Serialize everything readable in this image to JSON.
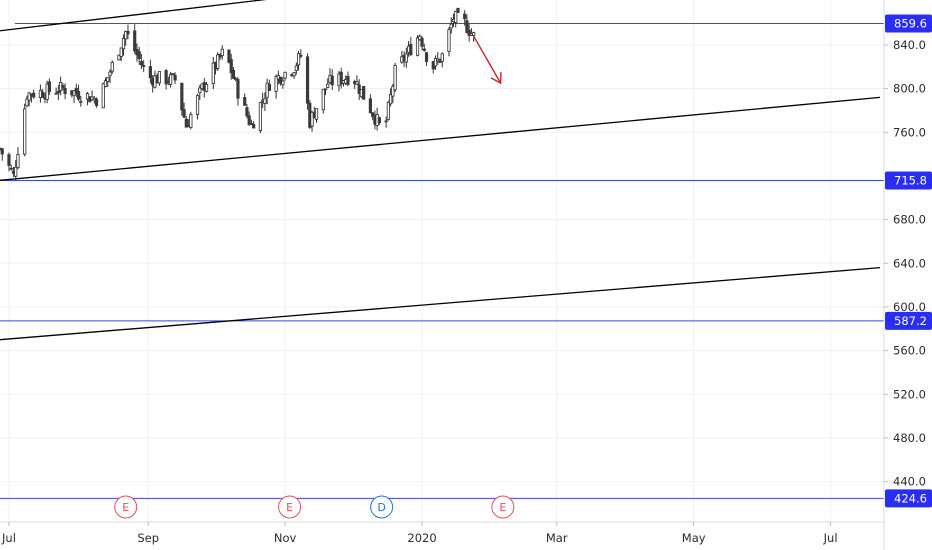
{
  "chart_data": {
    "type": "candlestick",
    "title": "",
    "xlabel": "",
    "ylabel": "",
    "x_ticks": [
      "Jul",
      "Sep",
      "Nov",
      "2020",
      "Mar",
      "May",
      "Jul"
    ],
    "y_ticks": [
      "840.0",
      "800.0",
      "760.0",
      "680.0",
      "640.0",
      "600.0",
      "560.0",
      "520.0",
      "480.0",
      "440.0"
    ],
    "ylim": [
      414,
      872
    ],
    "xlim": [
      "2019-06-27",
      "2020-07-23"
    ],
    "grid": true,
    "candles_summary": {
      "start_date": "2019-06-27",
      "end_date": "2020-01-24",
      "close_path": [
        [
          "2019-06-27",
          745
        ],
        [
          "2019-07-03",
          720
        ],
        [
          "2019-07-09",
          795
        ],
        [
          "2019-07-25",
          800
        ],
        [
          "2019-08-10",
          790
        ],
        [
          "2019-08-22",
          852
        ],
        [
          "2019-09-01",
          810
        ],
        [
          "2019-09-13",
          808
        ],
        [
          "2019-09-18",
          766
        ],
        [
          "2019-09-25",
          800
        ],
        [
          "2019-10-05",
          835
        ],
        [
          "2019-10-13",
          785
        ],
        [
          "2019-10-17",
          766
        ],
        [
          "2019-10-25",
          805
        ],
        [
          "2019-11-05",
          820
        ],
        [
          "2019-11-08",
          830
        ],
        [
          "2019-11-12",
          770
        ],
        [
          "2019-11-20",
          805
        ],
        [
          "2019-12-01",
          812
        ],
        [
          "2019-12-10",
          778
        ],
        [
          "2019-12-15",
          758
        ],
        [
          "2019-12-20",
          815
        ],
        [
          "2019-12-31",
          850
        ],
        [
          "2020-01-05",
          818
        ],
        [
          "2020-01-10",
          830
        ],
        [
          "2020-01-15",
          865
        ],
        [
          "2020-01-20",
          860
        ],
        [
          "2020-01-24",
          848
        ]
      ],
      "high_max": 872,
      "low_min": 716
    },
    "horizontal_levels": [
      {
        "label": "859.6",
        "value": 859.6
      },
      {
        "label": "715.8",
        "value": 715.8
      },
      {
        "label": "587.2",
        "value": 587.2
      },
      {
        "label": "424.6",
        "value": 424.6
      }
    ],
    "trend_lines": [
      {
        "from": [
          "2019-06-27",
          853
        ],
        "to": [
          "2020-01-03",
          899
        ]
      },
      {
        "from": [
          "2019-06-27",
          716
        ],
        "to": [
          "2020-07-23",
          792
        ]
      },
      {
        "from": [
          "2019-06-27",
          570
        ],
        "to": [
          "2020-07-23",
          636
        ]
      }
    ],
    "arrow": {
      "from": [
        "2020-01-24",
        848
      ],
      "to": [
        "2020-02-05",
        805
      ],
      "color": "#c0282c"
    },
    "events": [
      {
        "label": "E",
        "date": "2019-08-22",
        "color": "#e0515a"
      },
      {
        "label": "E",
        "date": "2019-11-03",
        "color": "#e0515a"
      },
      {
        "label": "D",
        "date": "2019-12-14",
        "color": "#2a6fd6"
      },
      {
        "label": "E",
        "date": "2020-02-06",
        "color": "#e0515a"
      }
    ],
    "colors": {
      "level": "#3f48d1",
      "badge": "#2a2ef2",
      "up": "#2b2b2b",
      "down": "#3a3a3a",
      "trend": "#000000",
      "grid": "#eef0f3"
    }
  }
}
